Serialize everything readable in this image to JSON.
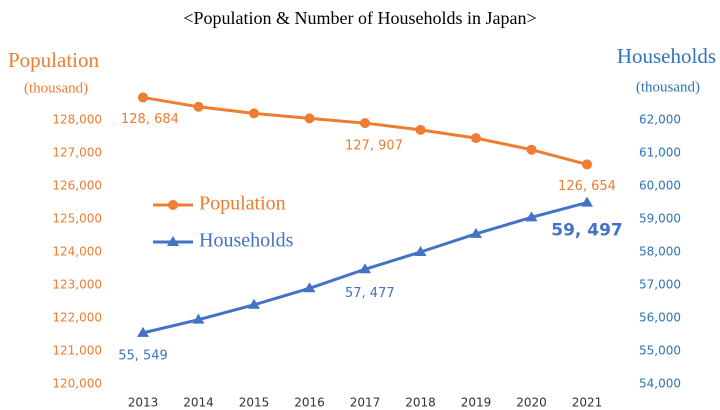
{
  "chart_data": {
    "type": "line",
    "title": "<Population & Number of Households in Japan>",
    "y_label": "Population",
    "y_unit": "(thousand)",
    "y2_label": "Households",
    "y2_unit": "(thousand)",
    "categories": [
      "2013",
      "2014",
      "2015",
      "2016",
      "2017",
      "2018",
      "2019",
      "2020",
      "2021"
    ],
    "series": [
      {
        "name": "Population",
        "color": "#ed7d31",
        "marker": "circle",
        "values": [
          128684,
          128400,
          128200,
          128050,
          127907,
          127700,
          127450,
          127100,
          126654
        ],
        "value_labels": [
          "128, 684",
          null,
          null,
          null,
          "127, 907",
          null,
          null,
          null,
          "126, 654"
        ]
      },
      {
        "name": "Households",
        "color": "#4472c4",
        "marker": "triangle",
        "axis": "y2",
        "values": [
          55549,
          55950,
          56400,
          56900,
          57477,
          58000,
          58550,
          59050,
          59497
        ],
        "value_labels": [
          "55, 549",
          null,
          null,
          null,
          "57, 477",
          null,
          null,
          null,
          "59, 497"
        ]
      }
    ],
    "ylim": [
      120000,
      129000
    ],
    "yticks": [
      {
        "value": 120000,
        "label": "120,000"
      },
      {
        "value": 121000,
        "label": "121,000"
      },
      {
        "value": 122000,
        "label": "122,000"
      },
      {
        "value": 123000,
        "label": "123,000"
      },
      {
        "value": 124000,
        "label": "124,000"
      },
      {
        "value": 125000,
        "label": "125,000"
      },
      {
        "value": 126000,
        "label": "126,000"
      },
      {
        "value": 127000,
        "label": "127,000"
      },
      {
        "value": 128000,
        "label": "128,000"
      }
    ],
    "y2lim": [
      54000,
      63000
    ],
    "y2ticks": [
      {
        "value": 54000,
        "label": "54,000"
      },
      {
        "value": 55000,
        "label": "55,000"
      },
      {
        "value": 56000,
        "label": "56,000"
      },
      {
        "value": 57000,
        "label": "57,000"
      },
      {
        "value": 58000,
        "label": "58,000"
      },
      {
        "value": 59000,
        "label": "59,000"
      },
      {
        "value": 60000,
        "label": "60,000"
      },
      {
        "value": 61000,
        "label": "61,000"
      },
      {
        "value": 62000,
        "label": "62,000"
      }
    ],
    "grid": false
  }
}
